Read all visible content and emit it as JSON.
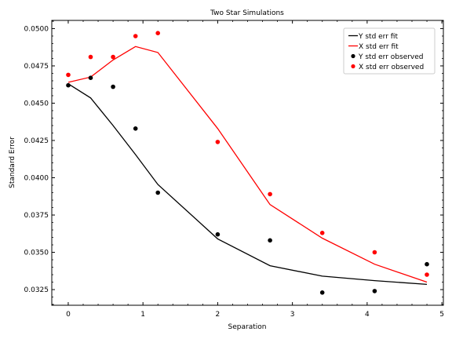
{
  "chart_data": {
    "type": "line",
    "title": "Two Star Simulations",
    "xlabel": "Separation",
    "ylabel": "Standard Error",
    "xlim": [
      -0.22,
      5.02
    ],
    "ylim": [
      0.03145,
      0.05055
    ],
    "xticks": [
      0,
      1,
      2,
      3,
      4,
      5
    ],
    "xtick_labels": [
      "0",
      "1",
      "2",
      "3",
      "4",
      "5"
    ],
    "yticks": [
      0.0325,
      0.035,
      0.0375,
      0.04,
      0.0425,
      0.045,
      0.0475,
      0.05
    ],
    "ytick_labels": [
      "0.0325",
      "0.0350",
      "0.0375",
      "0.0400",
      "0.0425",
      "0.0450",
      "0.0475",
      "0.0500"
    ],
    "grid": false,
    "legend_position": "top-right",
    "series": [
      {
        "name": "Y std err fit",
        "kind": "line",
        "color": "#000000",
        "x": [
          0,
          0.3,
          0.6,
          0.9,
          1.2,
          2.0,
          2.7,
          3.4,
          4.1,
          4.8
        ],
        "y": [
          0.0463,
          0.04535,
          0.0435,
          0.04155,
          0.03955,
          0.0359,
          0.0341,
          0.0334,
          0.0331,
          0.03285
        ]
      },
      {
        "name": "X std err fit",
        "kind": "line",
        "color": "#ff0000",
        "x": [
          0,
          0.3,
          0.6,
          0.9,
          1.2,
          2.0,
          2.7,
          3.4,
          4.1,
          4.8
        ],
        "y": [
          0.0464,
          0.04675,
          0.0479,
          0.0488,
          0.0484,
          0.0433,
          0.0382,
          0.03595,
          0.0342,
          0.033
        ]
      },
      {
        "name": "Y std err observed",
        "kind": "scatter",
        "color": "#000000",
        "x": [
          0,
          0.3,
          0.6,
          0.9,
          1.2,
          2.0,
          2.7,
          3.4,
          4.1,
          4.8
        ],
        "y": [
          0.0462,
          0.0467,
          0.0461,
          0.0433,
          0.039,
          0.0362,
          0.0358,
          0.0323,
          0.0324,
          0.0342
        ]
      },
      {
        "name": "X std err observed",
        "kind": "scatter",
        "color": "#ff0000",
        "x": [
          0,
          0.3,
          0.6,
          0.9,
          1.2,
          2.0,
          2.7,
          3.4,
          4.1,
          4.8
        ],
        "y": [
          0.0469,
          0.0481,
          0.0481,
          0.0495,
          0.0497,
          0.0424,
          0.0389,
          0.0363,
          0.035,
          0.0335
        ]
      }
    ]
  }
}
